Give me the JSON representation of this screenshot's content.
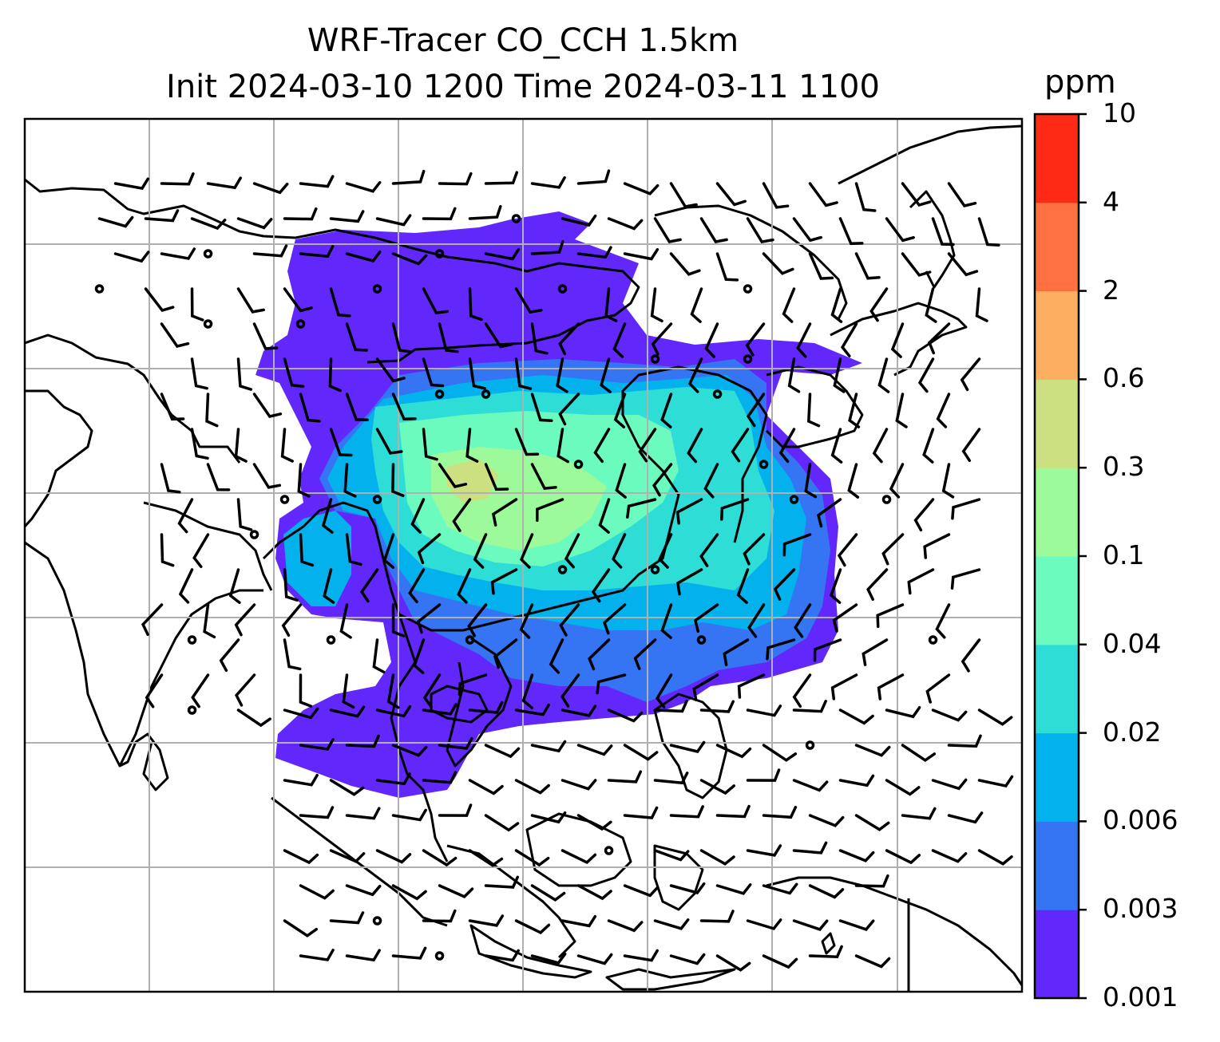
{
  "title_line1": "WRF-Tracer CO_CCH 1.5km",
  "title_line2": "Init 2024-03-10 1200 Time 2024-03-11 1100",
  "colorbar": {
    "unit": "ppm",
    "tick_labels": [
      "0.001",
      "0.003",
      "0.006",
      "0.02",
      "0.04",
      "0.1",
      "0.3",
      "0.6",
      "2",
      "4",
      "10"
    ],
    "colors": [
      "#6228FB",
      "#3574F2",
      "#03B2EC",
      "#2EDDD6",
      "#6BFBBE",
      "#9CFA9A",
      "#CDE081",
      "#FDAE61",
      "#FF7140",
      "#FF2A16"
    ]
  },
  "map": {
    "grid_lines": 7,
    "wind_barbs": true
  }
}
